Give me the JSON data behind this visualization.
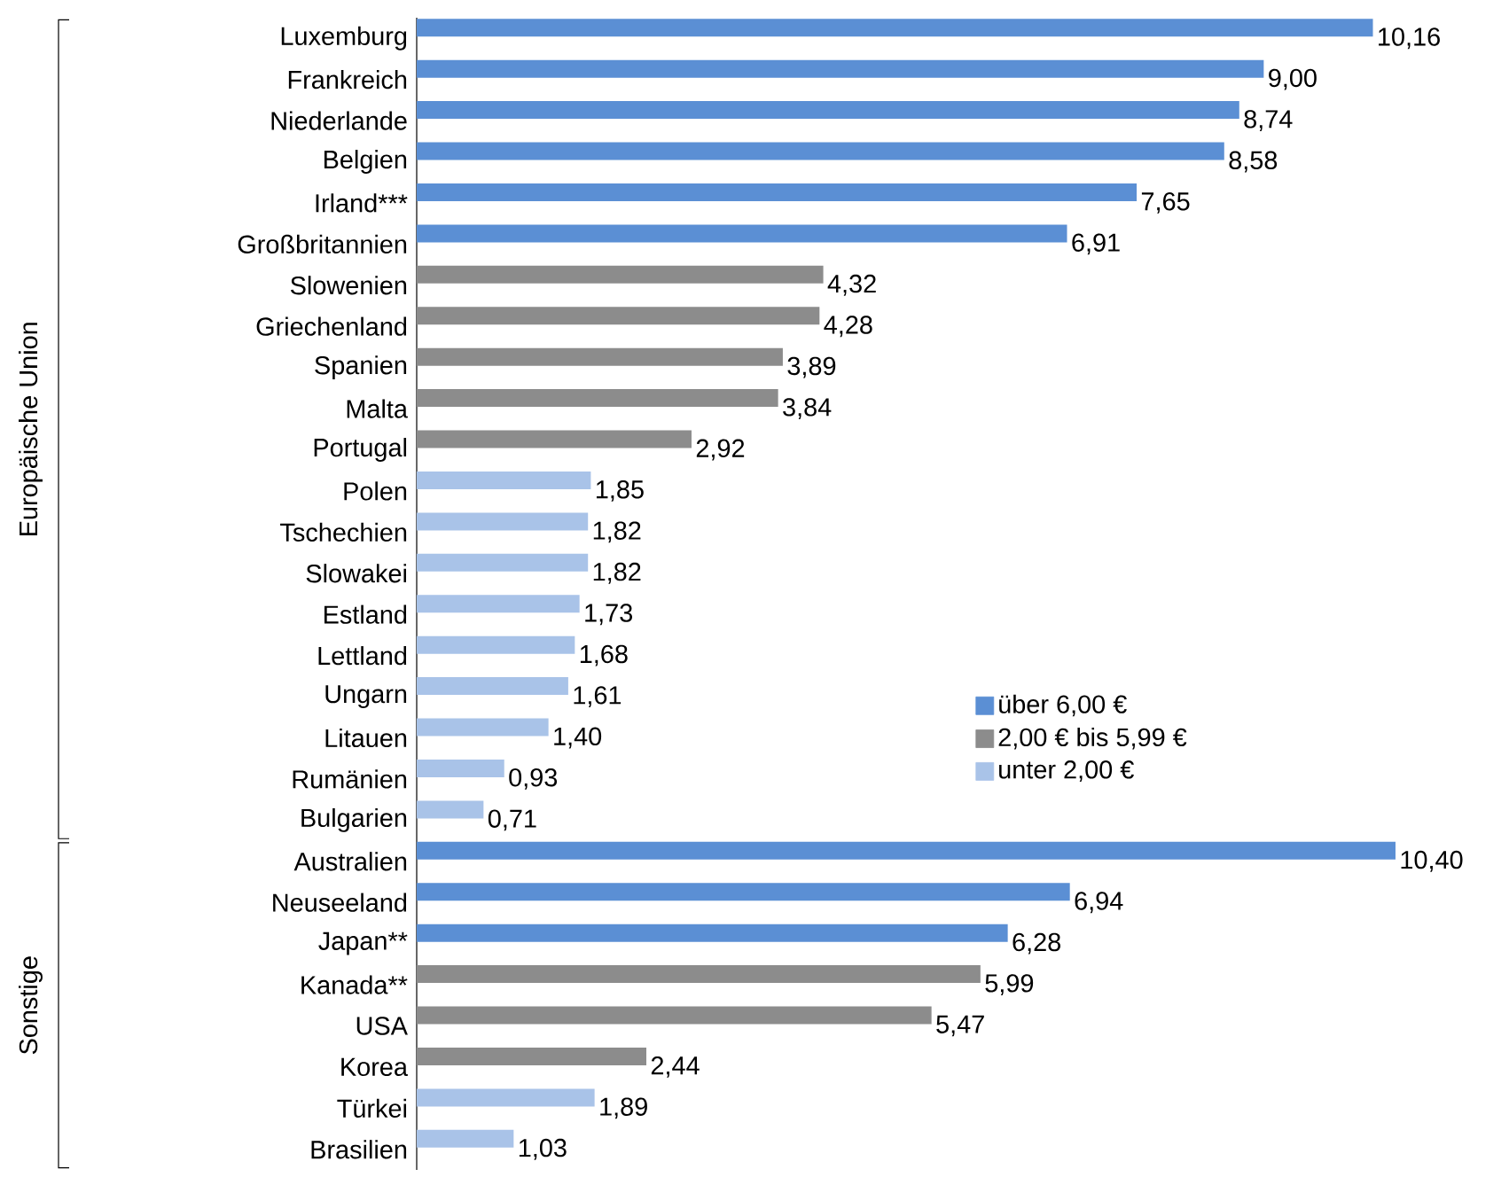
{
  "chart_data": {
    "type": "bar",
    "orientation": "horizontal",
    "legend": "center right",
    "categories": [
      "Luxemburg",
      "Frankreich",
      "Niederlande",
      "Belgien",
      "Irland***",
      "Großbritannien",
      "Slowenien",
      "Griechenland",
      "Spanien",
      "Malta",
      "Portugal",
      "Polen",
      "Tschechien",
      "Slowakei",
      "Estland",
      "Lettland",
      "Ungarn",
      "Litauen",
      "Rumänien",
      "Bulgarien",
      "Australien",
      "Neuseeland",
      "Japan**",
      "Kanada**",
      "USA",
      "Korea",
      "Türkei",
      "Brasilien"
    ],
    "series": [
      {
        "name": "über 6,00 €",
        "color": "#5b8fd4",
        "values": [
          10.16,
          9.0,
          8.74,
          8.58,
          7.65,
          6.91,
          null,
          null,
          null,
          null,
          null,
          null,
          null,
          null,
          null,
          null,
          null,
          null,
          null,
          null,
          10.4,
          6.94,
          6.28,
          null,
          null,
          null,
          null,
          null
        ],
        "value_labels": [
          "10,16",
          "9,00",
          "8,74",
          "8,58",
          "7,65",
          "6,91",
          null,
          null,
          null,
          null,
          null,
          null,
          null,
          null,
          null,
          null,
          null,
          null,
          null,
          null,
          "10,40",
          "6,94",
          "6,28",
          null,
          null,
          null,
          null,
          null
        ]
      },
      {
        "name": "2,00 € bis 5,99 €",
        "color": "#8c8c8c",
        "values": [
          null,
          null,
          null,
          null,
          null,
          null,
          4.32,
          4.28,
          3.89,
          3.84,
          2.92,
          null,
          null,
          null,
          null,
          null,
          null,
          null,
          null,
          null,
          null,
          null,
          null,
          5.99,
          5.47,
          2.44,
          null,
          null
        ],
        "value_labels": [
          null,
          null,
          null,
          null,
          null,
          null,
          "4,32",
          "4,28",
          "3,89",
          "3,84",
          "2,92",
          null,
          null,
          null,
          null,
          null,
          null,
          null,
          null,
          null,
          null,
          null,
          null,
          "5,99",
          "5,47",
          "2,44",
          null,
          null
        ]
      },
      {
        "name": "unter 2,00 €",
        "color": "#a9c3e8",
        "values": [
          null,
          null,
          null,
          null,
          null,
          null,
          null,
          null,
          null,
          null,
          null,
          1.85,
          1.82,
          1.82,
          1.73,
          1.68,
          1.61,
          1.4,
          0.93,
          0.71,
          null,
          null,
          null,
          null,
          null,
          null,
          1.89,
          1.03
        ],
        "value_labels": [
          null,
          null,
          null,
          null,
          null,
          null,
          null,
          null,
          null,
          null,
          null,
          "1,85",
          "1,82",
          "1,82",
          "1,73",
          "1,68",
          "1,61",
          "1,40",
          "0,93",
          "0,71",
          null,
          null,
          null,
          null,
          null,
          null,
          "1,89",
          "1,03"
        ]
      }
    ],
    "annotations": [
      "Europäische Union",
      "Sonstige"
    ]
  }
}
